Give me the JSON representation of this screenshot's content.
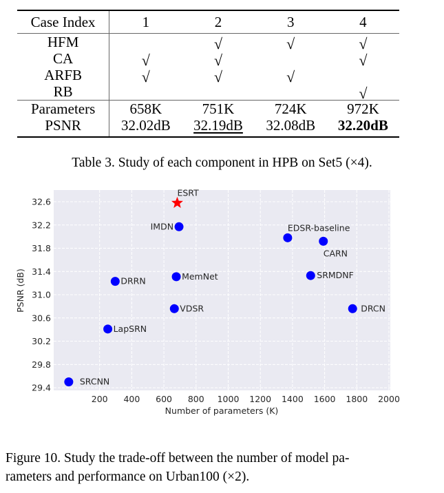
{
  "table": {
    "header": [
      "Case Index",
      "1",
      "2",
      "3",
      "4"
    ],
    "rows": [
      {
        "label": "HFM",
        "cells": [
          "",
          "√",
          "√",
          "√"
        ]
      },
      {
        "label": "CA",
        "cells": [
          "√",
          "√",
          "",
          "√"
        ]
      },
      {
        "label": "ARFB",
        "cells": [
          "√",
          "√",
          "√",
          ""
        ]
      },
      {
        "label": "RB",
        "cells": [
          "",
          "",
          "",
          "√"
        ]
      }
    ],
    "parameters": {
      "label": "Parameters",
      "cells": [
        "658K",
        "751K",
        "724K",
        "972K"
      ]
    },
    "psnr": {
      "label": "PSNR",
      "cells": [
        "32.02dB",
        "32.19dB",
        "32.08dB",
        "32.20dB"
      ],
      "underlined_index": 1,
      "bold_index": 3
    },
    "caption": "Table 3. Study of each component in HPB on Set5 (×4)."
  },
  "figure": {
    "caption_line1": "Figure 10.  Study the trade-off between the number of model pa-",
    "caption_line2": "rameters and performance on Urban100 (×2)."
  },
  "chart_data": {
    "type": "scatter",
    "title": "",
    "xlabel": "Number of parameters (K)",
    "ylabel": "PSNR (dB)",
    "xlim": [
      0,
      2000
    ],
    "ylim": [
      29.35,
      32.8
    ],
    "xticks": [
      200,
      400,
      600,
      800,
      1000,
      1200,
      1400,
      1600,
      1800,
      2000
    ],
    "yticks": [
      29.4,
      29.8,
      30.2,
      30.6,
      31.0,
      31.4,
      31.8,
      32.2,
      32.6
    ],
    "ytick_labels": [
      "29.4",
      "29.8",
      "30.2",
      "30.6",
      "31.0",
      "31.4",
      "31.8",
      "32.2",
      "32.6"
    ],
    "grid": true,
    "background": "#eaeaf2",
    "points": [
      {
        "name": "ESRT",
        "x": 683,
        "y": 32.58,
        "marker": "star",
        "color": "#ff0000"
      },
      {
        "name": "IMDN",
        "x": 694,
        "y": 32.17,
        "marker": "circle",
        "color": "#0000ff"
      },
      {
        "name": "EDSR-baseline",
        "x": 1370,
        "y": 31.98,
        "marker": "circle",
        "color": "#0000ff"
      },
      {
        "name": "CARN",
        "x": 1592,
        "y": 31.92,
        "marker": "circle",
        "color": "#0000ff"
      },
      {
        "name": "DRRN",
        "x": 297,
        "y": 31.23,
        "marker": "circle",
        "color": "#0000ff"
      },
      {
        "name": "MemNet",
        "x": 677,
        "y": 31.31,
        "marker": "circle",
        "color": "#0000ff"
      },
      {
        "name": "SRMDNF",
        "x": 1513,
        "y": 31.33,
        "marker": "circle",
        "color": "#0000ff"
      },
      {
        "name": "VDSR",
        "x": 665,
        "y": 30.76,
        "marker": "circle",
        "color": "#0000ff"
      },
      {
        "name": "DRCN",
        "x": 1774,
        "y": 30.76,
        "marker": "circle",
        "color": "#0000ff"
      },
      {
        "name": "LapSRN",
        "x": 251,
        "y": 30.41,
        "marker": "circle",
        "color": "#0000ff"
      },
      {
        "name": "SRCNN",
        "x": 8,
        "y": 29.5,
        "marker": "circle",
        "color": "#0000ff"
      }
    ]
  }
}
